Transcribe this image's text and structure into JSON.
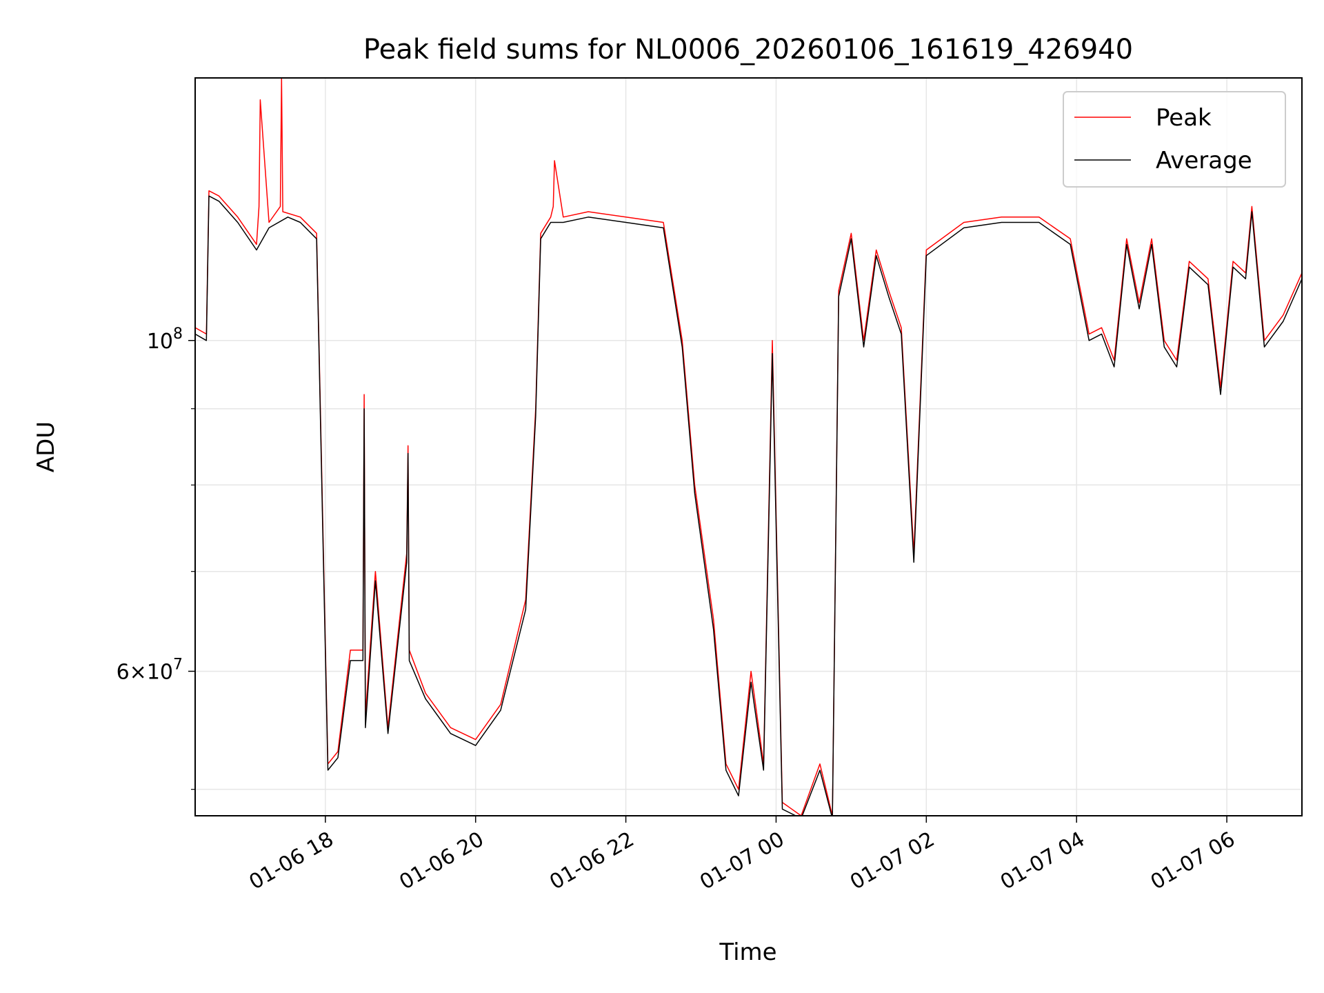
{
  "chart_data": {
    "type": "line",
    "title": "Peak field sums for NL0006_20260106_161619_426940",
    "xlabel": "Time",
    "ylabel": "ADU",
    "y_scale": "log",
    "ylim": [
      48000000,
      150000000
    ],
    "xlim": [
      "2026-01-06 16:16",
      "2026-01-07 07:00"
    ],
    "grid": true,
    "legend_position": "top-right",
    "x_ticks": [
      "01-06 18",
      "01-06 20",
      "01-06 22",
      "01-07 00",
      "01-07 02",
      "01-07 04",
      "01-07 06"
    ],
    "x_tick_times": [
      "2026-01-06 18:00",
      "2026-01-06 20:00",
      "2026-01-06 22:00",
      "2026-01-07 00:00",
      "2026-01-07 02:00",
      "2026-01-07 04:00",
      "2026-01-07 06:00"
    ],
    "y_tick_labels": [
      {
        "value": 100000000,
        "base": "10",
        "exp": "8",
        "mantissa": ""
      },
      {
        "value": 60000000,
        "base": "10",
        "exp": "7",
        "mantissa": "6"
      }
    ],
    "y_minor_ticks": [
      50000000,
      70000000,
      80000000,
      90000000,
      200000000
    ],
    "series": [
      {
        "name": "Peak",
        "color": "#ff0000",
        "x": [
          "2026-01-06 16:16",
          "2026-01-06 16:25",
          "2026-01-06 16:27",
          "2026-01-06 16:35",
          "2026-01-06 16:50",
          "2026-01-06 17:05",
          "2026-01-06 17:07",
          "2026-01-06 17:08",
          "2026-01-06 17:15",
          "2026-01-06 17:24",
          "2026-01-06 17:25",
          "2026-01-06 17:26",
          "2026-01-06 17:40",
          "2026-01-06 17:53",
          "2026-01-06 17:55",
          "2026-01-06 17:58",
          "2026-01-06 18:02",
          "2026-01-06 18:10",
          "2026-01-06 18:20",
          "2026-01-06 18:30",
          "2026-01-06 18:31",
          "2026-01-06 18:32",
          "2026-01-06 18:40",
          "2026-01-06 18:50",
          "2026-01-06 19:05",
          "2026-01-06 19:06",
          "2026-01-06 19:07",
          "2026-01-06 19:20",
          "2026-01-06 19:40",
          "2026-01-06 20:00",
          "2026-01-06 20:20",
          "2026-01-06 20:40",
          "2026-01-06 20:48",
          "2026-01-06 20:52",
          "2026-01-06 21:00",
          "2026-01-06 21:02",
          "2026-01-06 21:03",
          "2026-01-06 21:10",
          "2026-01-06 21:30",
          "2026-01-06 22:00",
          "2026-01-06 22:30",
          "2026-01-06 22:45",
          "2026-01-06 22:55",
          "2026-01-06 23:10",
          "2026-01-06 23:20",
          "2026-01-06 23:30",
          "2026-01-06 23:40",
          "2026-01-06 23:50",
          "2026-01-06 23:57",
          "2026-01-07 00:05",
          "2026-01-07 00:20",
          "2026-01-07 00:35",
          "2026-01-07 00:45",
          "2026-01-07 00:50",
          "2026-01-07 01:00",
          "2026-01-07 01:10",
          "2026-01-07 01:20",
          "2026-01-07 01:30",
          "2026-01-07 01:40",
          "2026-01-07 01:50",
          "2026-01-07 02:00",
          "2026-01-07 02:30",
          "2026-01-07 03:00",
          "2026-01-07 03:30",
          "2026-01-07 03:55",
          "2026-01-07 04:10",
          "2026-01-07 04:20",
          "2026-01-07 04:30",
          "2026-01-07 04:40",
          "2026-01-07 04:50",
          "2026-01-07 05:00",
          "2026-01-07 05:10",
          "2026-01-07 05:20",
          "2026-01-07 05:30",
          "2026-01-07 05:45",
          "2026-01-07 05:55",
          "2026-01-07 06:05",
          "2026-01-07 06:15",
          "2026-01-07 06:20",
          "2026-01-07 06:30",
          "2026-01-07 06:45",
          "2026-01-07 07:00"
        ],
        "y": [
          102000000,
          101000000,
          126000000,
          125000000,
          121000000,
          116000000,
          123000000,
          145000000,
          120000000,
          123000000,
          150000000,
          122000000,
          121000000,
          118000000,
          99000000,
          75000000,
          52000000,
          53000000,
          62000000,
          62000000,
          92000000,
          56000000,
          70000000,
          55000000,
          72000000,
          85000000,
          62000000,
          58000000,
          55000000,
          54000000,
          57000000,
          67000000,
          90000000,
          118000000,
          121000000,
          123000000,
          132000000,
          121000000,
          122000000,
          121000000,
          120000000,
          100000000,
          80000000,
          65000000,
          52000000,
          50000000,
          60000000,
          52000000,
          100000000,
          49000000,
          48000000,
          52000000,
          48000000,
          108000000,
          118000000,
          100000000,
          115000000,
          108000000,
          102000000,
          72000000,
          115000000,
          120000000,
          121000000,
          121000000,
          117000000,
          101000000,
          102000000,
          97000000,
          117000000,
          106000000,
          117000000,
          100000000,
          97000000,
          113000000,
          110000000,
          93000000,
          113000000,
          111000000,
          123000000,
          100000000,
          104000000,
          111000000
        ]
      },
      {
        "name": "Average",
        "color": "#000000",
        "x": [
          "2026-01-06 16:16",
          "2026-01-06 16:25",
          "2026-01-06 16:27",
          "2026-01-06 16:35",
          "2026-01-06 16:50",
          "2026-01-06 17:05",
          "2026-01-06 17:15",
          "2026-01-06 17:30",
          "2026-01-06 17:40",
          "2026-01-06 17:53",
          "2026-01-06 17:55",
          "2026-01-06 17:58",
          "2026-01-06 18:02",
          "2026-01-06 18:10",
          "2026-01-06 18:20",
          "2026-01-06 18:30",
          "2026-01-06 18:31",
          "2026-01-06 18:32",
          "2026-01-06 18:40",
          "2026-01-06 18:50",
          "2026-01-06 19:05",
          "2026-01-06 19:06",
          "2026-01-06 19:07",
          "2026-01-06 19:20",
          "2026-01-06 19:40",
          "2026-01-06 20:00",
          "2026-01-06 20:20",
          "2026-01-06 20:40",
          "2026-01-06 20:48",
          "2026-01-06 20:52",
          "2026-01-06 21:00",
          "2026-01-06 21:10",
          "2026-01-06 21:30",
          "2026-01-06 22:00",
          "2026-01-06 22:30",
          "2026-01-06 22:45",
          "2026-01-06 22:55",
          "2026-01-06 23:10",
          "2026-01-06 23:20",
          "2026-01-06 23:30",
          "2026-01-06 23:40",
          "2026-01-06 23:50",
          "2026-01-06 23:57",
          "2026-01-07 00:05",
          "2026-01-07 00:20",
          "2026-01-07 00:35",
          "2026-01-07 00:45",
          "2026-01-07 00:50",
          "2026-01-07 01:00",
          "2026-01-07 01:10",
          "2026-01-07 01:20",
          "2026-01-07 01:30",
          "2026-01-07 01:40",
          "2026-01-07 01:50",
          "2026-01-07 02:00",
          "2026-01-07 02:30",
          "2026-01-07 03:00",
          "2026-01-07 03:30",
          "2026-01-07 03:55",
          "2026-01-07 04:10",
          "2026-01-07 04:20",
          "2026-01-07 04:30",
          "2026-01-07 04:40",
          "2026-01-07 04:50",
          "2026-01-07 05:00",
          "2026-01-07 05:10",
          "2026-01-07 05:20",
          "2026-01-07 05:30",
          "2026-01-07 05:45",
          "2026-01-07 05:55",
          "2026-01-07 06:05",
          "2026-01-07 06:15",
          "2026-01-07 06:20",
          "2026-01-07 06:30",
          "2026-01-07 06:45",
          "2026-01-07 07:00"
        ],
        "y": [
          101000000,
          100000000,
          125000000,
          124000000,
          120000000,
          115000000,
          119000000,
          121000000,
          120000000,
          117000000,
          98000000,
          74000000,
          51500000,
          52500000,
          61000000,
          61000000,
          90000000,
          55000000,
          69000000,
          54500000,
          71000000,
          84000000,
          61000000,
          57500000,
          54500000,
          53500000,
          56500000,
          66000000,
          89000000,
          117000000,
          120000000,
          120000000,
          121000000,
          120000000,
          119000000,
          99000000,
          79000000,
          64000000,
          51500000,
          49500000,
          59000000,
          51500000,
          98000000,
          48500000,
          47800000,
          51500000,
          47800000,
          107000000,
          117000000,
          99000000,
          114000000,
          107000000,
          101000000,
          71000000,
          114000000,
          119000000,
          120000000,
          120000000,
          116000000,
          100000000,
          101000000,
          96000000,
          116000000,
          105000000,
          116000000,
          99000000,
          96000000,
          112000000,
          109000000,
          92000000,
          112000000,
          110000000,
          122000000,
          99000000,
          103000000,
          110000000
        ]
      }
    ]
  }
}
